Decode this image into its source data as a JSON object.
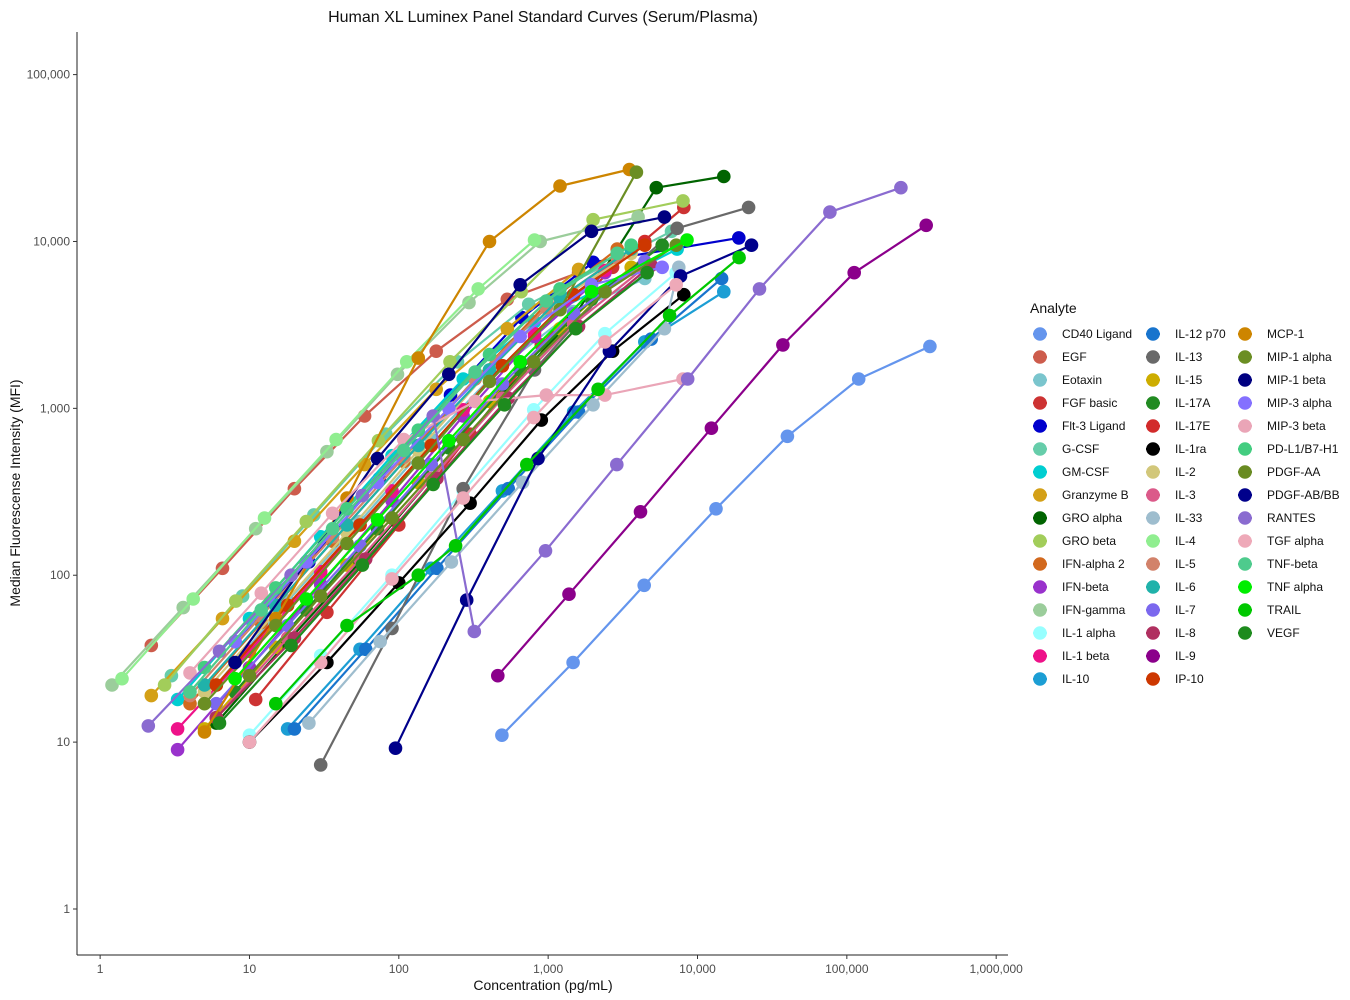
{
  "chart_data": {
    "type": "line",
    "title": "Human XL Luminex Panel Standard Curves (Serum/Plasma)",
    "xlabel": "Concentration (pg/mL)",
    "ylabel": "Median Fluorescense Intensity (MFI)",
    "x_scale": "log10",
    "y_scale": "log10",
    "xlim": [
      0.7,
      1200000
    ],
    "ylim": [
      0.53,
      180000
    ],
    "x_ticks": [
      1,
      10,
      100,
      1000,
      10000,
      100000,
      1000000
    ],
    "x_tick_labels": [
      "1",
      "10",
      "100",
      "1,000",
      "10,000",
      "100,000",
      "1,000,000"
    ],
    "y_ticks": [
      1,
      10,
      100,
      1000,
      10000,
      100000
    ],
    "y_tick_labels": [
      "1",
      "10",
      "100",
      "1,000",
      "10,000",
      "100,000"
    ],
    "grid": false,
    "legend_position": "right",
    "legend_title": "Analyte",
    "series": [
      {
        "name": "CD40 Ligand",
        "color": "#6495ED",
        "x": [
          490,
          1470,
          4400,
          13300,
          40000,
          120000,
          360000
        ],
        "y": [
          11,
          30,
          87,
          250,
          680,
          1500,
          2350
        ]
      },
      {
        "name": "EGF",
        "color": "#CD5C4C",
        "x": [
          2.2,
          6.6,
          20,
          59,
          178,
          533,
          1600
        ],
        "y": [
          38,
          110,
          330,
          900,
          2200,
          4500,
          6500
        ]
      },
      {
        "name": "Eotaxin",
        "color": "#7AC5CD",
        "x": [
          6,
          18,
          55,
          165,
          494,
          1480,
          4440
        ],
        "y": [
          22,
          70,
          210,
          650,
          1800,
          3800,
          6000
        ]
      },
      {
        "name": "FGF basic",
        "color": "#CD3333",
        "x": [
          11,
          33,
          100,
          300,
          900,
          2700,
          8100
        ],
        "y": [
          18,
          60,
          200,
          700,
          2400,
          7000,
          16000
        ]
      },
      {
        "name": "Flt-3 Ligand",
        "color": "#0000CD",
        "x": [
          8,
          25,
          74,
          222,
          667,
          2000,
          18900
        ],
        "y": [
          40,
          120,
          380,
          1200,
          3500,
          7500,
          10500
        ]
      },
      {
        "name": "G-CSF",
        "color": "#66CDAA",
        "x": [
          3,
          9,
          27,
          82,
          247,
          741,
          6700
        ],
        "y": [
          25,
          75,
          230,
          700,
          1900,
          4200,
          11500
        ]
      },
      {
        "name": "GM-CSF",
        "color": "#00CED1",
        "x": [
          3.3,
          10,
          30,
          90,
          270,
          810,
          7300
        ],
        "y": [
          18,
          55,
          170,
          520,
          1500,
          3300,
          9000
        ]
      },
      {
        "name": "Granzyme B",
        "color": "#D4A017",
        "x": [
          2.2,
          6.6,
          20,
          59,
          178,
          533,
          1600
        ],
        "y": [
          19,
          55,
          160,
          460,
          1300,
          3000,
          6800
        ]
      },
      {
        "name": "GRO alpha",
        "color": "#006400",
        "x": [
          6,
          18,
          55,
          165,
          494,
          1480,
          5300,
          15000
        ],
        "y": [
          13,
          40,
          120,
          380,
          1200,
          3500,
          21000,
          24500
        ]
      },
      {
        "name": "GRO beta",
        "color": "#A2CD5A",
        "x": [
          2.7,
          8.1,
          24,
          73,
          220,
          660,
          2000,
          8000
        ],
        "y": [
          22,
          70,
          210,
          640,
          1900,
          5000,
          13500,
          17500
        ]
      },
      {
        "name": "IFN-alpha 2",
        "color": "#D2691E",
        "x": [
          4,
          12,
          36,
          108,
          324,
          972,
          2900
        ],
        "y": [
          17,
          52,
          160,
          480,
          1500,
          4200,
          9000
        ]
      },
      {
        "name": "IFN-beta",
        "color": "#9932CC",
        "x": [
          3.3,
          10,
          30,
          90,
          270,
          810,
          2400
        ],
        "y": [
          9,
          28,
          88,
          280,
          900,
          2700,
          6500
        ]
      },
      {
        "name": "IFN-gamma",
        "color": "#9BCD9B",
        "x": [
          1.2,
          3.6,
          11,
          33,
          98,
          295,
          885,
          4000
        ],
        "y": [
          22,
          64,
          190,
          550,
          1600,
          4300,
          10000,
          14000
        ]
      },
      {
        "name": "IL-1 alpha",
        "color": "#97FFFF",
        "x": [
          10,
          30,
          90,
          270,
          800,
          2400,
          7200
        ],
        "y": [
          11,
          33,
          100,
          320,
          980,
          2800,
          6500
        ]
      },
      {
        "name": "IL-1 beta",
        "color": "#EE1289",
        "x": [
          3.3,
          10,
          30,
          90,
          270,
          810,
          2400
        ],
        "y": [
          12,
          35,
          105,
          320,
          980,
          2800,
          6700
        ]
      },
      {
        "name": "IL-10",
        "color": "#1C9ED4",
        "x": [
          18,
          55,
          165,
          494,
          1480,
          4440,
          15000
        ],
        "y": [
          12,
          36,
          110,
          320,
          950,
          2500,
          5000
        ]
      },
      {
        "name": "IL-12 p70",
        "color": "#1874CD",
        "x": [
          20,
          60,
          180,
          540,
          1600,
          4900,
          14500
        ],
        "y": [
          12,
          36,
          110,
          330,
          950,
          2600,
          6000
        ]
      },
      {
        "name": "IL-13",
        "color": "#696969",
        "x": [
          30,
          90,
          270,
          810,
          2400,
          7300,
          22000
        ],
        "y": [
          7.3,
          48,
          330,
          1700,
          5000,
          12000,
          16000
        ]
      },
      {
        "name": "IL-15",
        "color": "#CDAD00",
        "x": [
          5,
          15,
          45,
          135,
          405,
          1200,
          3600
        ],
        "y": [
          12,
          37,
          115,
          360,
          1100,
          3000,
          7000
        ]
      },
      {
        "name": "IL-17A",
        "color": "#228B22",
        "x": [
          8,
          24,
          72,
          216,
          650,
          1950,
          5800
        ],
        "y": [
          20,
          62,
          190,
          580,
          1700,
          4500,
          9500
        ]
      },
      {
        "name": "IL-17E",
        "color": "#D22B2B",
        "x": [
          6,
          18,
          55,
          165,
          494,
          1480,
          4440
        ],
        "y": [
          22,
          66,
          200,
          600,
          1800,
          4800,
          10000
        ]
      },
      {
        "name": "IL-1ra",
        "color": "#000000",
        "x": [
          10,
          33,
          100,
          300,
          900,
          2700,
          8100
        ],
        "y": [
          10,
          30,
          90,
          270,
          850,
          2200,
          4800
        ]
      },
      {
        "name": "IL-2",
        "color": "#D2C77A",
        "x": [
          5,
          15,
          45,
          135,
          405,
          1200,
          3600
        ],
        "y": [
          20,
          60,
          180,
          560,
          1700,
          4500,
          8500
        ]
      },
      {
        "name": "IL-3",
        "color": "#DB5A8A",
        "x": [
          6,
          18,
          55,
          165,
          494,
          1480,
          4440
        ],
        "y": [
          14,
          42,
          125,
          380,
          1150,
          3200,
          7000
        ]
      },
      {
        "name": "IL-33",
        "color": "#9EBDCE",
        "x": [
          25,
          75,
          225,
          675,
          2000,
          6000,
          7500
        ],
        "y": [
          13,
          40,
          120,
          360,
          1050,
          3000,
          7000
        ]
      },
      {
        "name": "IL-4",
        "color": "#90EE90",
        "x": [
          1.4,
          4.2,
          12.6,
          38,
          113,
          340,
          810
        ],
        "y": [
          24,
          72,
          220,
          650,
          1900,
          5200,
          10200
        ]
      },
      {
        "name": "IL-5",
        "color": "#D2826A",
        "x": [
          4,
          12,
          36,
          108,
          324,
          972,
          2900
        ],
        "y": [
          19,
          57,
          170,
          510,
          1500,
          4000,
          8000
        ]
      },
      {
        "name": "IL-6",
        "color": "#20B2AA",
        "x": [
          5,
          15,
          45,
          135,
          405,
          1200,
          3600
        ],
        "y": [
          22,
          66,
          200,
          600,
          1700,
          4600,
          9000
        ]
      },
      {
        "name": "IL-7",
        "color": "#7B68EE",
        "x": [
          6,
          18,
          55,
          165,
          494,
          1480,
          4440
        ],
        "y": [
          17,
          50,
          150,
          460,
          1400,
          3700,
          7600
        ]
      },
      {
        "name": "IL-8",
        "color": "#B03060",
        "x": [
          6,
          20,
          60,
          180,
          540,
          1600,
          4900
        ],
        "y": [
          14,
          42,
          125,
          380,
          1150,
          3100,
          7200
        ]
      },
      {
        "name": "IL-9",
        "color": "#8B008B",
        "x": [
          460,
          1380,
          4150,
          12400,
          37300,
          112000,
          340000
        ],
        "y": [
          25,
          77,
          240,
          760,
          2400,
          6500,
          12500
        ]
      },
      {
        "name": "IP-10",
        "color": "#CD3700",
        "x": [
          6,
          18,
          55,
          165,
          494,
          1480,
          4440
        ],
        "y": [
          22,
          66,
          200,
          600,
          1800,
          4800,
          9500
        ]
      },
      {
        "name": "MCP-1",
        "color": "#CD8500",
        "x": [
          5,
          15,
          45,
          135,
          405,
          1200,
          3500
        ],
        "y": [
          11.5,
          55,
          290,
          2000,
          10000,
          21500,
          27000
        ]
      },
      {
        "name": "MIP-1 alpha",
        "color": "#6B8E23",
        "x": [
          5,
          15,
          45,
          135,
          405,
          1200,
          3900
        ],
        "y": [
          17,
          50,
          155,
          470,
          1450,
          3900,
          26000
        ]
      },
      {
        "name": "MIP-1 beta",
        "color": "#000080",
        "x": [
          8,
          24,
          72,
          216,
          650,
          1950,
          6000
        ],
        "y": [
          30,
          120,
          500,
          1600,
          5500,
          11500,
          14000
        ]
      },
      {
        "name": "MIP-3 alpha",
        "color": "#8470FF",
        "x": [
          8,
          24,
          72,
          216,
          650,
          1950,
          5800
        ],
        "y": [
          40,
          120,
          360,
          1000,
          2700,
          5500,
          7000
        ]
      },
      {
        "name": "MIP-3 beta",
        "color": "#EAA5B7",
        "x": [
          4,
          12,
          36,
          108,
          324,
          972,
          2400,
          8000
        ],
        "y": [
          26,
          78,
          235,
          650,
          1100,
          1200,
          1200,
          1500
        ]
      },
      {
        "name": "PD-L1/B7-H1",
        "color": "#43CD80",
        "x": [
          5,
          15,
          45,
          135,
          405,
          1200,
          3600
        ],
        "y": [
          28,
          84,
          250,
          740,
          2100,
          5200,
          9500
        ]
      },
      {
        "name": "PDGF-AA",
        "color": "#698B22",
        "x": [
          10,
          30,
          90,
          270,
          800,
          2400,
          7200
        ],
        "y": [
          25,
          75,
          220,
          650,
          1900,
          5000,
          9500
        ]
      },
      {
        "name": "PDGF-AB/BB",
        "color": "#00008B",
        "x": [
          95,
          285,
          855,
          2570,
          7700,
          23000
        ],
        "y": [
          9.2,
          71,
          500,
          2200,
          6200,
          9500
        ]
      },
      {
        "name": "RANTES",
        "color": "#8A6BD0",
        "x": [
          2.1,
          6.3,
          19,
          57,
          170,
          320,
          960,
          2880,
          8600,
          26000,
          77000,
          230000
        ],
        "y": [
          12.5,
          35,
          100,
          300,
          900,
          46,
          140,
          460,
          1500,
          5200,
          15000,
          21000
        ]
      },
      {
        "name": "TGF alpha",
        "color": "#EEA9B8",
        "x": [
          10,
          30,
          90,
          270,
          800,
          2400,
          7200
        ],
        "y": [
          10,
          30,
          95,
          290,
          880,
          2500,
          5500
        ]
      },
      {
        "name": "TNF-beta",
        "color": "#4ECB8D",
        "x": [
          4,
          12,
          36,
          108,
          324,
          972,
          2900
        ],
        "y": [
          20,
          62,
          190,
          560,
          1650,
          4400,
          8500
        ]
      },
      {
        "name": "TNF alpha",
        "color": "#00EE00",
        "x": [
          8,
          24,
          72,
          216,
          650,
          1950,
          8500
        ],
        "y": [
          24,
          72,
          215,
          640,
          1900,
          5000,
          10200
        ]
      },
      {
        "name": "TRAIL",
        "color": "#00C800",
        "x": [
          15,
          45,
          135,
          240,
          720,
          2160,
          6500,
          19000
        ],
        "y": [
          17,
          50,
          100,
          150,
          460,
          1300,
          3600,
          8000
        ]
      },
      {
        "name": "VEGF",
        "color": "#1E8B1E",
        "x": [
          6.3,
          19,
          57,
          170,
          510,
          1530,
          4600
        ],
        "y": [
          13,
          38,
          115,
          350,
          1050,
          3000,
          6500
        ]
      }
    ]
  }
}
